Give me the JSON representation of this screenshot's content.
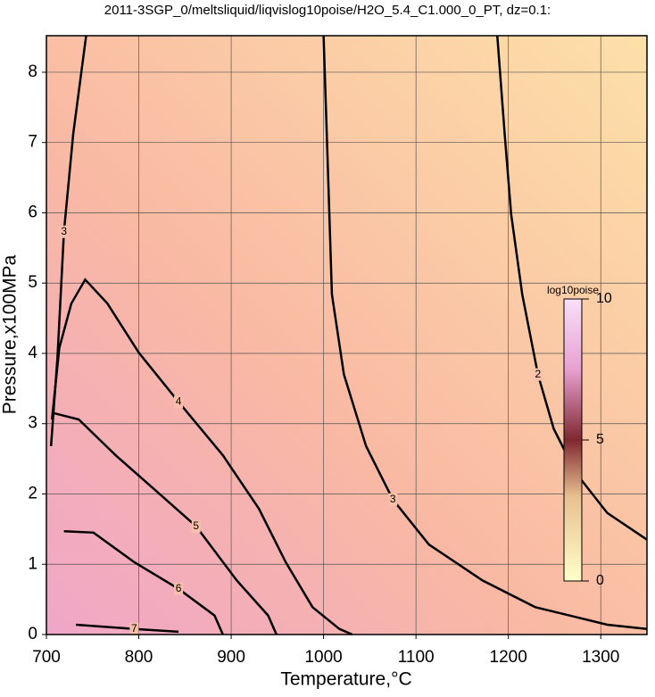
{
  "chart_data": {
    "type": "contour",
    "title": "2011-3SGP_0/meltsliquid/liqvislog10poise/H2O_5.4_C1.000_0_PT, dz=0.1:",
    "x_label": "Temperature,°C",
    "y_label": "Pressure,x100MPa",
    "xlim": [
      700,
      1350
    ],
    "xticks": [
      700,
      800,
      900,
      1000,
      1100,
      1200,
      1300
    ],
    "ylim": [
      0,
      8.52
    ],
    "yticks": [
      0,
      1,
      2,
      3,
      4,
      5,
      6,
      7,
      8
    ],
    "grid": true,
    "contours": [
      {
        "level": 2,
        "x": [
          1188,
          1196,
          1203,
          1215,
          1232,
          1249,
          1273,
          1307,
          1350
        ],
        "y": [
          8.52,
          7.12,
          5.98,
          4.84,
          3.7,
          2.93,
          2.3,
          1.73,
          1.35
        ]
      },
      {
        "level": 3,
        "x": [
          1000,
          1005,
          1009,
          1022,
          1046,
          1075,
          1114,
          1172,
          1229,
          1307,
          1350
        ],
        "y": [
          8.52,
          6.49,
          4.84,
          3.7,
          2.68,
          1.92,
          1.28,
          0.77,
          0.39,
          0.14,
          0.08
        ]
      },
      {
        "level": 3,
        "x": [
          743,
          729,
          719,
          712,
          705
        ],
        "y": [
          8.52,
          7.12,
          5.73,
          3.95,
          2.68
        ]
      },
      {
        "level": 4,
        "x": [
          706,
          714,
          727,
          742,
          766,
          800,
          843,
          891,
          930,
          959,
          988,
          1017,
          1031
        ],
        "y": [
          3.06,
          4.08,
          4.71,
          5.05,
          4.71,
          4.01,
          3.31,
          2.55,
          1.79,
          1.03,
          0.39,
          0.08,
          0
        ]
      },
      {
        "level": 5,
        "x": [
          708,
          735,
          775,
          819,
          862,
          906,
          940,
          949
        ],
        "y": [
          3.15,
          3.06,
          2.55,
          2.04,
          1.54,
          0.77,
          0.27,
          0
        ]
      },
      {
        "level": 6,
        "x": [
          719,
          751,
          795,
          843,
          882,
          891
        ],
        "y": [
          1.47,
          1.45,
          1.03,
          0.65,
          0.27,
          0
        ]
      },
      {
        "level": 7,
        "x": [
          732,
          795,
          843
        ],
        "y": [
          0.14,
          0.08,
          0.04
        ]
      }
    ],
    "colorbar": {
      "title": "log10poise",
      "lim": [
        0,
        10
      ],
      "ticks": [
        0,
        5,
        10
      ]
    }
  }
}
